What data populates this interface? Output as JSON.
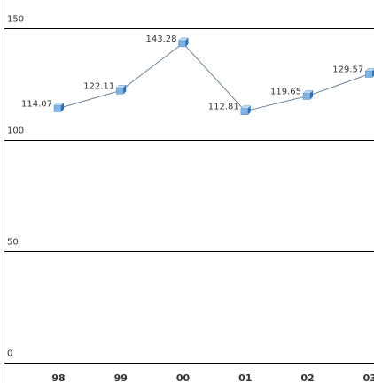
{
  "chart_data": {
    "type": "line",
    "categories": [
      "98",
      "99",
      "00",
      "01",
      "02",
      "03"
    ],
    "values": [
      114.07,
      122.11,
      143.28,
      112.81,
      119.65,
      129.57
    ],
    "value_labels": [
      "114.07",
      "122.11",
      "143.28",
      "112.81",
      "119.65",
      "129.57"
    ],
    "ylim": [
      0,
      150
    ],
    "yticks": [
      "0",
      "50",
      "100",
      "150"
    ],
    "grid": true,
    "legend": "none",
    "colors": {
      "line": "#6e8296",
      "marker": "#7fb2e0",
      "marker_side": "#2f6fb8",
      "grid": "#000000"
    }
  }
}
